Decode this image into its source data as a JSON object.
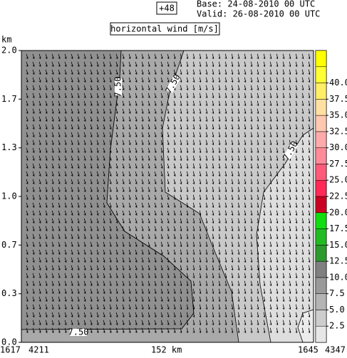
{
  "chart_data": {
    "type": "cross-section",
    "lead": "+48",
    "base": "Base: 24-08-2010  00 UTC",
    "valid": "Valid: 26-08-2010  00 UTC",
    "title": "horizontal wind [m/s]",
    "ylabel": "km",
    "ylim": [
      0,
      2
    ],
    "yticks": [
      {
        "value": 0,
        "label": "0.0"
      },
      {
        "value": 0.333,
        "label": "0.3"
      },
      {
        "value": 0.667,
        "label": "0.7"
      },
      {
        "value": 1,
        "label": "1.0"
      },
      {
        "value": 1.333,
        "label": "1.3"
      },
      {
        "value": 1.667,
        "label": "1.7"
      },
      {
        "value": 2,
        "label": "2.0"
      }
    ],
    "xlabels": [
      "1617",
      "4211",
      "152 km",
      "1645",
      "4347"
    ],
    "clim": [
      0,
      45
    ],
    "cticks": [
      {
        "value": 2.5,
        "label": "2.5"
      },
      {
        "value": 5,
        "label": "5.0"
      },
      {
        "value": 7.5,
        "label": "7.5"
      },
      {
        "value": 10,
        "label": "10.0"
      },
      {
        "value": 12.5,
        "label": "12.5"
      },
      {
        "value": 15,
        "label": "15.0"
      },
      {
        "value": 17.5,
        "label": "17.5"
      },
      {
        "value": 20,
        "label": "20.0"
      },
      {
        "value": 22.5,
        "label": "22.5"
      },
      {
        "value": 25,
        "label": "25.0"
      },
      {
        "value": 27.5,
        "label": "27.5"
      },
      {
        "value": 30,
        "label": "30.0"
      },
      {
        "value": 32.5,
        "label": "32.5"
      },
      {
        "value": 35,
        "label": "35.0"
      },
      {
        "value": 37.5,
        "label": "37.5"
      },
      {
        "value": 40,
        "label": "40.0"
      }
    ],
    "colors": [
      "#e6e6e6",
      "#cdcdcd",
      "#b4b4b4",
      "#9a9a9a",
      "#808080",
      "#2e9a2e",
      "#22bb22",
      "#11dd11",
      "#cc0022",
      "#ff2a55",
      "#ff5a7a",
      "#ff8a9a",
      "#ffaaaa",
      "#ffc8b0",
      "#ffe0a0",
      "#ffee66",
      "#ffff33",
      "#ffff00"
    ],
    "annotations": [
      "7.50",
      "7.50",
      "7.50",
      "7.50"
    ]
  }
}
